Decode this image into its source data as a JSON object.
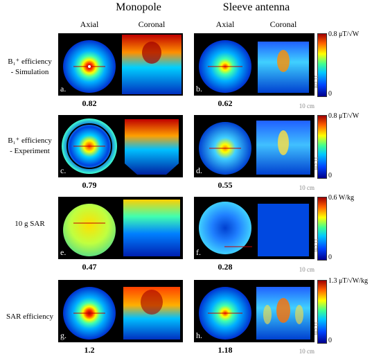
{
  "groups": {
    "monopole": "Monopole",
    "sleeve": "Sleeve antenna"
  },
  "columns": {
    "axial": "Axial",
    "coronal": "Coronal"
  },
  "rows": [
    {
      "line1": "B₁⁺ efficiency",
      "line2": "- Simulation",
      "left_label": "a.",
      "left_value": "0.82",
      "right_label": "b.",
      "right_value": "0.62",
      "cbar_top": "0.8 μT/√W",
      "cbar_bottom": "0"
    },
    {
      "line1": "B₁⁺ efficiency",
      "line2": "- Experiment",
      "left_label": "c.",
      "left_value": "0.79",
      "right_label": "d.",
      "right_value": "0.55",
      "cbar_top": "0.8 μT/√W",
      "cbar_bottom": "0"
    },
    {
      "line1": "10 g SAR",
      "line2": "",
      "left_label": "e.",
      "left_value": "0.47",
      "right_label": "f.",
      "right_value": "0.28",
      "cbar_top": "0.6 W/kg",
      "cbar_bottom": "0"
    },
    {
      "line1": "SAR efficiency",
      "line2": "",
      "left_label": "g.",
      "left_value": "1.2",
      "right_label": "h.",
      "right_value": "1.18",
      "cbar_top": "1.3 μT/√W/kg",
      "cbar_bottom": "0"
    }
  ],
  "scale": {
    "horizontal": "10 cm",
    "vertical": "11 cm"
  },
  "colormap": "jet",
  "colors": {
    "deep_red": "#a00000",
    "red": "#ff2000",
    "yellow": "#ffff00",
    "cyan": "#00c8ff",
    "blue": "#0044ff",
    "dark_blue": "#00008b",
    "background": "#000000"
  }
}
